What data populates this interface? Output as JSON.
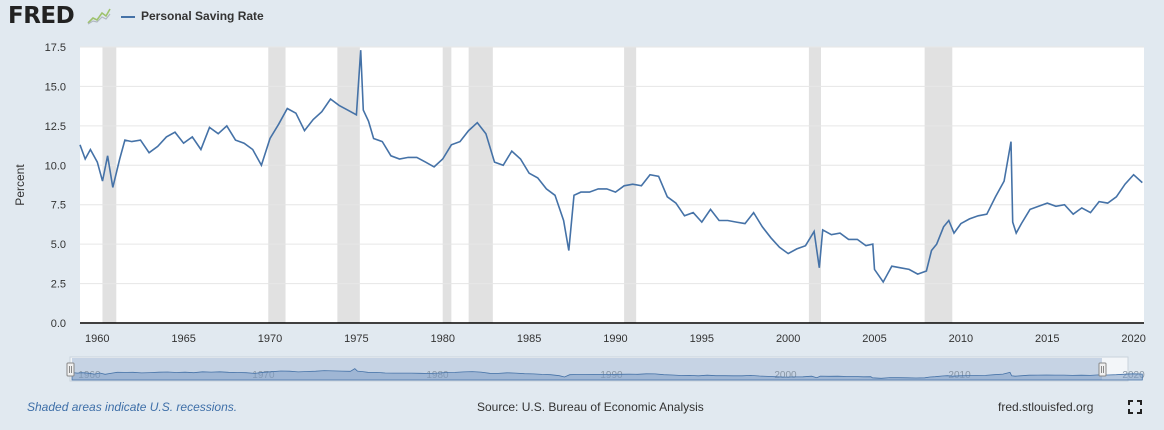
{
  "header": {
    "logo_text": "FRED",
    "logo_mark_icon": "fred-chart-mark-icon",
    "legend_label": "Personal Saving Rate",
    "series_color": "#4572a7"
  },
  "footer": {
    "recession_note": "Shaded areas indicate U.S. recessions.",
    "source": "Source: U.S. Bureau of Economic Analysis",
    "site": "fred.stlouisfed.org",
    "fullscreen_icon": "fullscreen-icon"
  },
  "chart_data": {
    "type": "line",
    "title": "",
    "xlabel": "",
    "ylabel": "Percent",
    "xlim": [
      1959.0,
      2020.6
    ],
    "ylim": [
      0,
      17.5
    ],
    "yticks": [
      0.0,
      2.5,
      5.0,
      7.5,
      10.0,
      12.5,
      15.0,
      17.5
    ],
    "ytick_labels": [
      "0.0",
      "2.5",
      "5.0",
      "7.5",
      "10.0",
      "12.5",
      "15.0",
      "17.5"
    ],
    "xticks": [
      1960,
      1965,
      1970,
      1975,
      1980,
      1985,
      1990,
      1995,
      2000,
      2005,
      2010,
      2015,
      2020
    ],
    "xtick_labels": [
      "1960",
      "1965",
      "1970",
      "1975",
      "1980",
      "1985",
      "1990",
      "1995",
      "2000",
      "2005",
      "2010",
      "2015",
      "2020"
    ],
    "grid": "horizontal",
    "recessions": [
      [
        1960.3,
        1961.1
      ],
      [
        1969.9,
        1970.9
      ],
      [
        1973.9,
        1975.2
      ],
      [
        1980.0,
        1980.5
      ],
      [
        1981.5,
        1982.9
      ],
      [
        1990.5,
        1991.2
      ],
      [
        2001.2,
        2001.9
      ],
      [
        2007.9,
        2009.5
      ]
    ],
    "series": [
      {
        "name": "Personal Saving Rate",
        "color": "#4572a7",
        "x": [
          1959.0,
          1959.3,
          1959.6,
          1960.0,
          1960.3,
          1960.6,
          1960.9,
          1961.3,
          1961.6,
          1962.0,
          1962.5,
          1963.0,
          1963.5,
          1964.0,
          1964.5,
          1965.0,
          1965.5,
          1966.0,
          1966.5,
          1967.0,
          1967.5,
          1968.0,
          1968.5,
          1969.0,
          1969.5,
          1970.0,
          1970.5,
          1971.0,
          1971.5,
          1972.0,
          1972.5,
          1973.0,
          1973.5,
          1974.0,
          1974.5,
          1975.0,
          1975.25,
          1975.4,
          1975.7,
          1976.0,
          1976.5,
          1977.0,
          1977.5,
          1978.0,
          1978.5,
          1979.0,
          1979.5,
          1980.0,
          1980.5,
          1981.0,
          1981.5,
          1982.0,
          1982.5,
          1983.0,
          1983.5,
          1984.0,
          1984.5,
          1985.0,
          1985.5,
          1986.0,
          1986.5,
          1987.0,
          1987.3,
          1987.6,
          1988.0,
          1988.5,
          1989.0,
          1989.5,
          1990.0,
          1990.5,
          1991.0,
          1991.5,
          1992.0,
          1992.5,
          1993.0,
          1993.5,
          1994.0,
          1994.5,
          1995.0,
          1995.5,
          1996.0,
          1996.5,
          1997.0,
          1997.5,
          1998.0,
          1998.5,
          1999.0,
          1999.5,
          2000.0,
          2000.5,
          2001.0,
          2001.5,
          2001.8,
          2002.0,
          2002.5,
          2003.0,
          2003.5,
          2004.0,
          2004.5,
          2004.9,
          2005.0,
          2005.5,
          2006.0,
          2006.5,
          2007.0,
          2007.5,
          2008.0,
          2008.3,
          2008.6,
          2009.0,
          2009.3,
          2009.6,
          2010.0,
          2010.5,
          2011.0,
          2011.5,
          2012.0,
          2012.5,
          2012.9,
          2013.0,
          2013.2,
          2013.5,
          2014.0,
          2014.5,
          2015.0,
          2015.5,
          2016.0,
          2016.5,
          2017.0,
          2017.5,
          2018.0,
          2018.5,
          2019.0,
          2019.5,
          2020.0,
          2020.5
        ],
        "values": [
          11.3,
          10.4,
          11.0,
          10.2,
          9.0,
          10.6,
          8.6,
          10.4,
          11.6,
          11.5,
          11.6,
          10.8,
          11.2,
          11.8,
          12.1,
          11.4,
          11.8,
          11.0,
          12.4,
          12.0,
          12.5,
          11.6,
          11.4,
          11.0,
          10.0,
          11.7,
          12.6,
          13.6,
          13.3,
          12.2,
          12.9,
          13.4,
          14.2,
          13.8,
          13.5,
          13.2,
          17.3,
          13.5,
          12.8,
          11.7,
          11.5,
          10.6,
          10.4,
          10.5,
          10.5,
          10.2,
          9.9,
          10.4,
          11.3,
          11.5,
          12.2,
          12.7,
          12.0,
          10.2,
          10.0,
          10.9,
          10.4,
          9.5,
          9.2,
          8.5,
          8.1,
          6.5,
          4.6,
          8.1,
          8.3,
          8.3,
          8.5,
          8.5,
          8.3,
          8.7,
          8.8,
          8.7,
          9.4,
          9.3,
          8.0,
          7.6,
          6.8,
          7.0,
          6.4,
          7.2,
          6.5,
          6.5,
          6.4,
          6.3,
          7.0,
          6.1,
          5.4,
          4.8,
          4.4,
          4.7,
          4.9,
          5.8,
          3.5,
          5.9,
          5.6,
          5.7,
          5.3,
          5.3,
          4.9,
          5.0,
          3.4,
          2.6,
          3.6,
          3.5,
          3.4,
          3.1,
          3.3,
          4.6,
          5.0,
          6.1,
          6.5,
          5.7,
          6.3,
          6.6,
          6.8,
          6.9,
          8.0,
          9.0,
          11.5,
          6.4,
          5.7,
          6.3,
          7.2,
          7.4,
          7.6,
          7.4,
          7.5,
          6.9,
          7.3,
          7.0,
          7.7,
          7.6,
          8.0,
          8.8,
          9.4,
          8.9
        ]
      }
    ]
  }
}
